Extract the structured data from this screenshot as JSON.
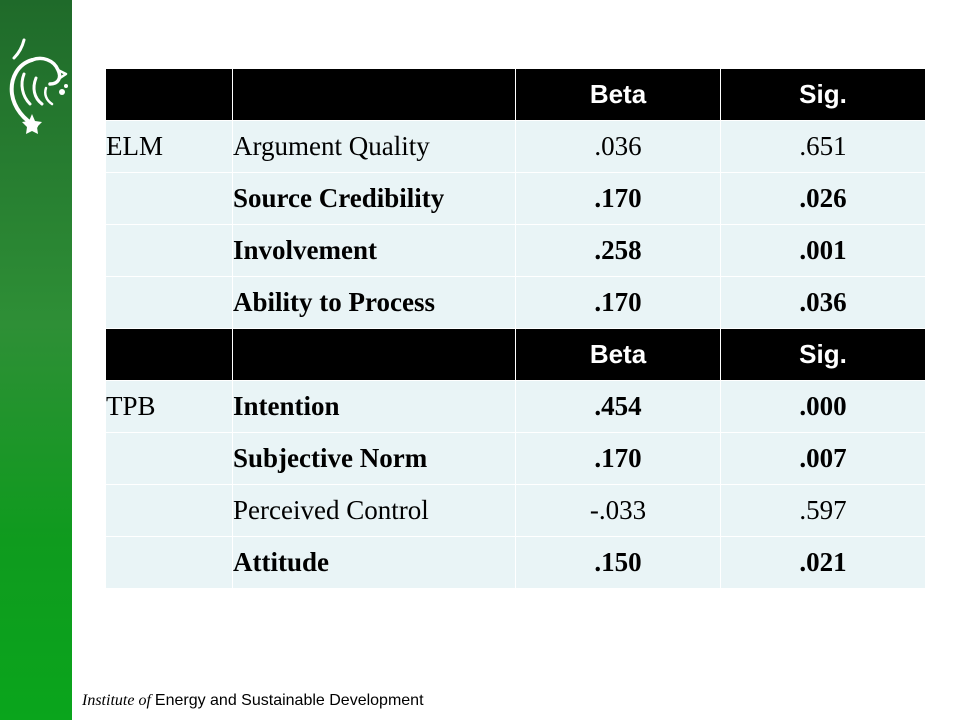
{
  "brand": {
    "logo_icon": "lion-emblem-icon",
    "sidebar_color": "#1f7a2a"
  },
  "table": {
    "sections": [
      {
        "header": {
          "col3": "Beta",
          "col4": "Sig."
        },
        "rows": [
          {
            "group": "ELM",
            "label": "Argument  Quality",
            "beta": ".036",
            "sig": ".651",
            "bold": false
          },
          {
            "group": "",
            "label": "Source Credibility",
            "beta": ".170",
            "sig": ".026",
            "bold": true
          },
          {
            "group": "",
            "label": "Involvement",
            "beta": ".258",
            "sig": ".001",
            "bold": true
          },
          {
            "group": "",
            "label": "Ability to Process",
            "beta": ".170",
            "sig": ".036",
            "bold": true
          }
        ]
      },
      {
        "header": {
          "col3": "Beta",
          "col4": "Sig."
        },
        "rows": [
          {
            "group": "TPB",
            "label": "Intention",
            "beta": ".454",
            "sig": ".000",
            "bold": true
          },
          {
            "group": "",
            "label": "Subjective Norm",
            "beta": ".170",
            "sig": ".007",
            "bold": true
          },
          {
            "group": "",
            "label": "Perceived Control",
            "beta": "-.033",
            "sig": ".597",
            "bold": false
          },
          {
            "group": "",
            "label": "Attitude",
            "beta": ".150",
            "sig": ".021",
            "bold": true
          }
        ]
      }
    ]
  },
  "footer": {
    "italic_part": "Institute of",
    "plain_part": "Energy and Sustainable Development"
  }
}
